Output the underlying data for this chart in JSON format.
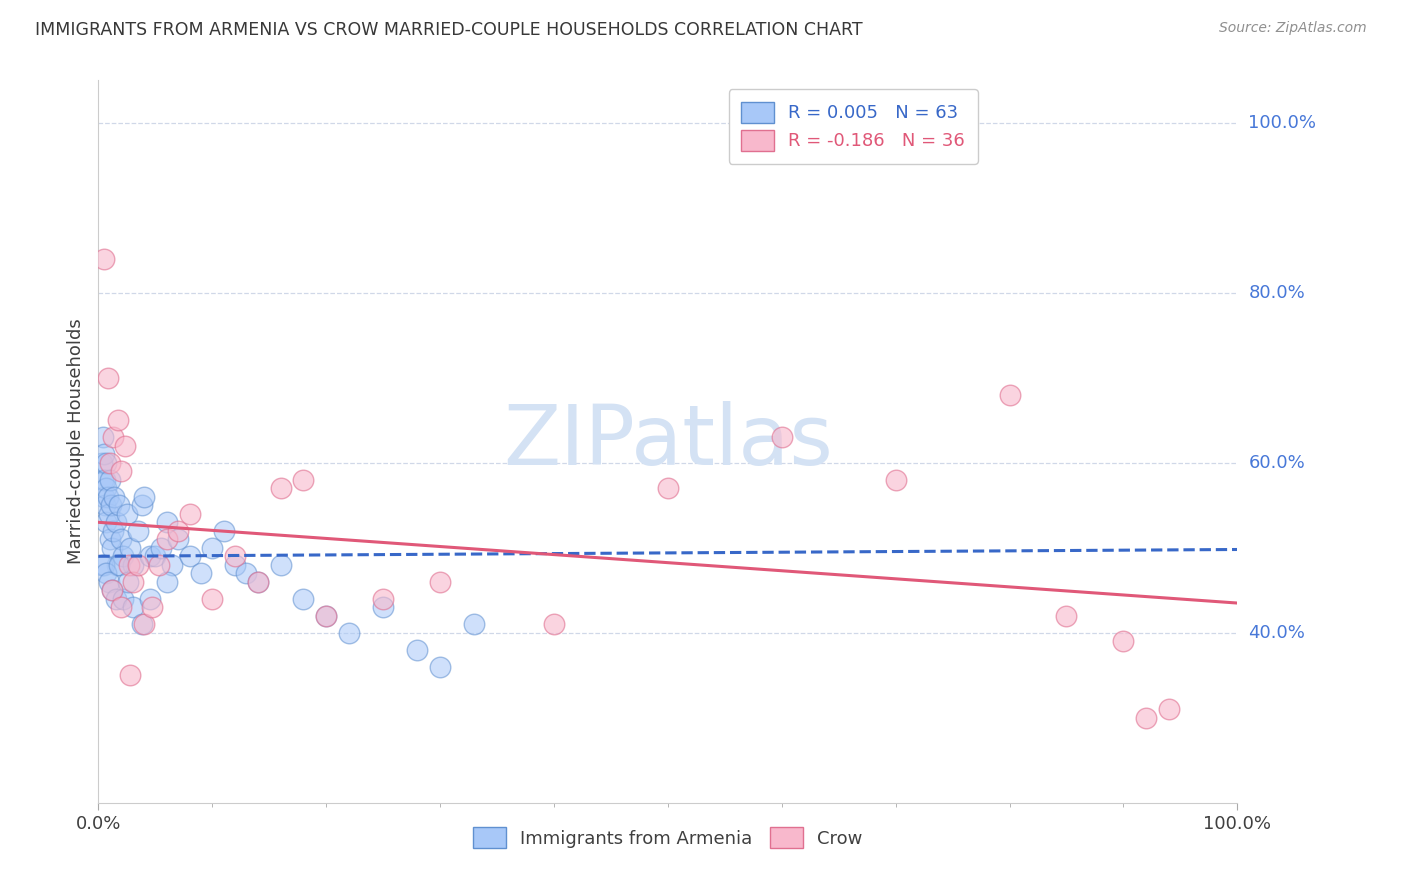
{
  "title": "IMMIGRANTS FROM ARMENIA VS CROW MARRIED-COUPLE HOUSEHOLDS CORRELATION CHART",
  "source": "Source: ZipAtlas.com",
  "ylabel": "Married-couple Households",
  "xlim": [
    0.0,
    1.0
  ],
  "ylim": [
    0.2,
    1.05
  ],
  "ytick_values": [
    1.0,
    0.8,
    0.6,
    0.4
  ],
  "ytick_labels": [
    "100.0%",
    "80.0%",
    "60.0%",
    "40.0%"
  ],
  "xtick_values": [
    0.0,
    1.0
  ],
  "xtick_labels": [
    "0.0%",
    "100.0%"
  ],
  "legend1_label": "R = 0.005   N = 63",
  "legend2_label": "R = -0.186   N = 36",
  "legend1_facecolor": "#a8c8f8",
  "legend2_facecolor": "#f8b8cc",
  "legend1_edgecolor": "#6090d0",
  "legend2_edgecolor": "#e07090",
  "trendline1_color": "#3868c8",
  "trendline2_color": "#e05878",
  "trendline1_x": [
    0.0,
    1.0
  ],
  "trendline1_y": [
    0.49,
    0.498
  ],
  "trendline2_x": [
    0.0,
    1.0
  ],
  "trendline2_y": [
    0.53,
    0.435
  ],
  "grid_color": "#d0d8e8",
  "background_color": "#ffffff",
  "title_color": "#383838",
  "ytick_color": "#4878d8",
  "source_color": "#909090",
  "watermark": "ZIPatlas",
  "watermark_color": "#d4e2f4",
  "blue_x": [
    0.003,
    0.004,
    0.004,
    0.005,
    0.005,
    0.006,
    0.006,
    0.007,
    0.007,
    0.007,
    0.008,
    0.009,
    0.01,
    0.01,
    0.011,
    0.012,
    0.013,
    0.014,
    0.015,
    0.016,
    0.018,
    0.02,
    0.022,
    0.025,
    0.028,
    0.03,
    0.035,
    0.038,
    0.04,
    0.045,
    0.05,
    0.055,
    0.06,
    0.065,
    0.07,
    0.08,
    0.09,
    0.1,
    0.11,
    0.12,
    0.13,
    0.14,
    0.16,
    0.18,
    0.2,
    0.22,
    0.25,
    0.28,
    0.3,
    0.33,
    0.003,
    0.005,
    0.007,
    0.009,
    0.012,
    0.015,
    0.018,
    0.022,
    0.026,
    0.03,
    0.038,
    0.045,
    0.06
  ],
  "blue_y": [
    0.6,
    0.63,
    0.58,
    0.56,
    0.61,
    0.58,
    0.55,
    0.6,
    0.57,
    0.53,
    0.56,
    0.54,
    0.58,
    0.51,
    0.55,
    0.5,
    0.52,
    0.56,
    0.53,
    0.48,
    0.55,
    0.51,
    0.49,
    0.54,
    0.5,
    0.48,
    0.52,
    0.55,
    0.56,
    0.49,
    0.49,
    0.5,
    0.53,
    0.48,
    0.51,
    0.49,
    0.47,
    0.5,
    0.52,
    0.48,
    0.47,
    0.46,
    0.48,
    0.44,
    0.42,
    0.4,
    0.43,
    0.38,
    0.36,
    0.41,
    0.48,
    0.48,
    0.47,
    0.46,
    0.45,
    0.44,
    0.48,
    0.44,
    0.46,
    0.43,
    0.41,
    0.44,
    0.46
  ],
  "pink_x": [
    0.005,
    0.008,
    0.01,
    0.013,
    0.017,
    0.02,
    0.023,
    0.027,
    0.03,
    0.035,
    0.04,
    0.047,
    0.053,
    0.06,
    0.07,
    0.08,
    0.1,
    0.12,
    0.14,
    0.16,
    0.2,
    0.25,
    0.3,
    0.4,
    0.5,
    0.6,
    0.7,
    0.8,
    0.85,
    0.9,
    0.92,
    0.94,
    0.012,
    0.02,
    0.028,
    0.18
  ],
  "pink_y": [
    0.84,
    0.7,
    0.6,
    0.63,
    0.65,
    0.59,
    0.62,
    0.48,
    0.46,
    0.48,
    0.41,
    0.43,
    0.48,
    0.51,
    0.52,
    0.54,
    0.44,
    0.49,
    0.46,
    0.57,
    0.42,
    0.44,
    0.46,
    0.41,
    0.57,
    0.63,
    0.58,
    0.68,
    0.42,
    0.39,
    0.3,
    0.31,
    0.45,
    0.43,
    0.35,
    0.58
  ],
  "scatter_size": 220,
  "bottom_legend_labels": [
    "Immigrants from Armenia",
    "Crow"
  ],
  "top_legend_labels": [
    "R = 0.005   N = 63",
    "R = -0.186   N = 36"
  ]
}
